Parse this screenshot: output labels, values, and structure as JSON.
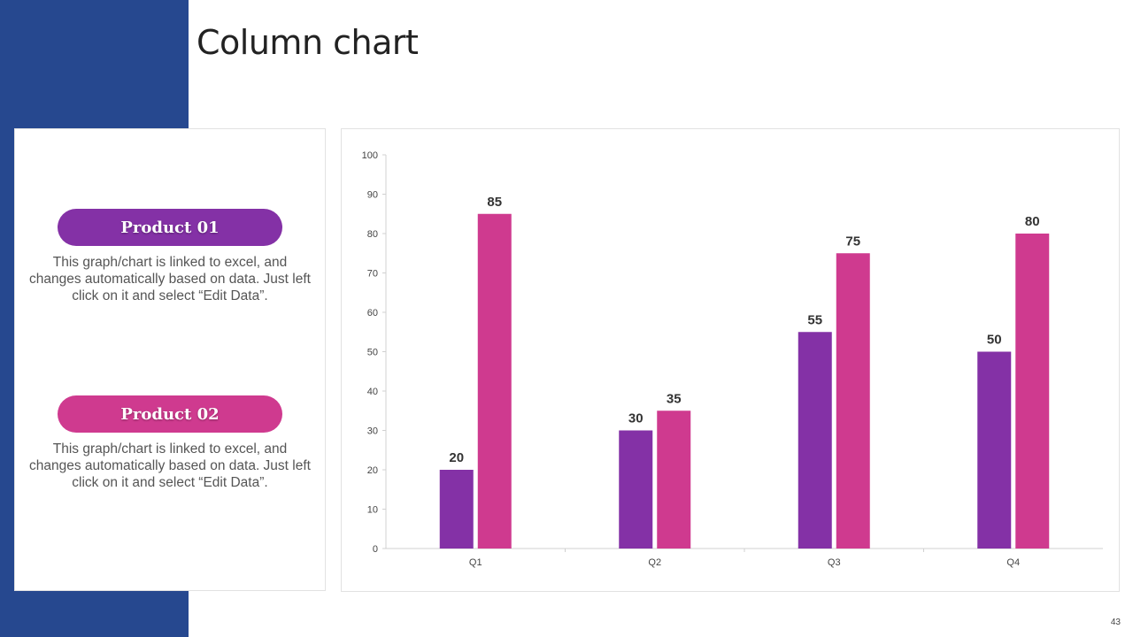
{
  "slide": {
    "title": "Column chart",
    "page_number": "43"
  },
  "products": [
    {
      "label": "Product 01",
      "color": "#8431a6",
      "description": "This graph/chart is linked to excel, and changes automatically based on data. Just left click on it and select “Edit Data”."
    },
    {
      "label": "Product 02",
      "color": "#cf3a8f",
      "description": "This graph/chart is linked to excel, and changes automatically based on data. Just left click on it and select “Edit Data”."
    }
  ],
  "colors": {
    "side_band": "#26488f",
    "axis": "#d0d0d0",
    "tick_text": "#444444",
    "label_text": "#333333"
  },
  "chart_data": {
    "type": "bar",
    "categories": [
      "Q1",
      "Q2",
      "Q3",
      "Q4"
    ],
    "series": [
      {
        "values": [
          20,
          30,
          55,
          50
        ],
        "color": "#8431a6"
      },
      {
        "values": [
          85,
          35,
          75,
          80
        ],
        "color": "#cf3a8f"
      }
    ],
    "ylim": [
      0,
      100
    ],
    "yticks": [
      0,
      10,
      20,
      30,
      40,
      50,
      60,
      70,
      80,
      90,
      100
    ],
    "data_labels": true,
    "grid": false
  }
}
